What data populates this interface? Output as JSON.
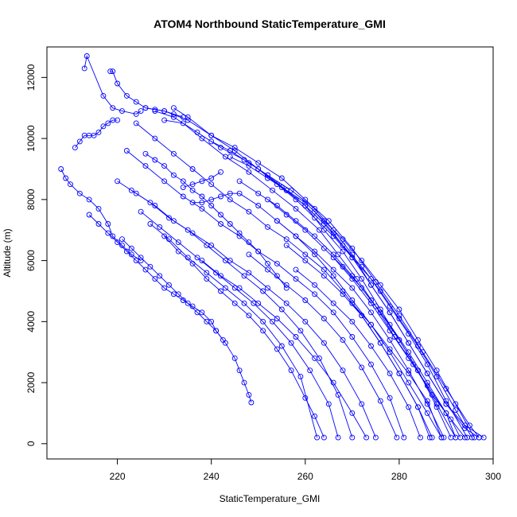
{
  "chart_data": {
    "type": "scatter",
    "title": "ATOM4 Northbound StaticTemperature_GMI",
    "xlabel": "StaticTemperature_GMI",
    "ylabel": "Altitude (m)",
    "xlim": [
      205,
      300
    ],
    "ylim": [
      -500,
      13000
    ],
    "xticks": [
      220,
      240,
      260,
      280,
      300
    ],
    "yticks": [
      0,
      2000,
      4000,
      6000,
      8000,
      10000,
      12000
    ],
    "y_tick_orientation": "vertical",
    "grid": false,
    "legend": "none",
    "marker": "open-circle",
    "connect_points": true,
    "color": "#0000ff",
    "series": [
      {
        "x": [
          213,
          213.5,
          217,
          219,
          221,
          224,
          225
        ],
        "y": [
          12300,
          12700,
          11400,
          11000,
          10900,
          10800,
          10900
        ]
      },
      {
        "x": [
          218.5,
          219,
          220,
          222,
          224,
          226,
          228,
          230,
          232,
          234
        ],
        "y": [
          12200,
          12200,
          11800,
          11400,
          11200,
          11000,
          10950,
          10900,
          10800,
          10700
        ]
      },
      {
        "x": [
          208,
          209,
          210,
          212,
          214,
          216,
          218,
          219,
          221,
          223,
          225
        ],
        "y": [
          9000,
          8700,
          8500,
          8200,
          8000,
          7700,
          7200,
          6800,
          6500,
          6200,
          6000
        ]
      },
      {
        "x": [
          214,
          216,
          218,
          220,
          222,
          224,
          226,
          228,
          230,
          232,
          234,
          236,
          238,
          240,
          241,
          242.5
        ],
        "y": [
          7500,
          7200,
          6900,
          6600,
          6300,
          6000,
          5700,
          5400,
          5100,
          4900,
          4700,
          4500,
          4300,
          4000,
          3700,
          3400
        ]
      },
      {
        "x": [
          221,
          223,
          225,
          227,
          229,
          231,
          233,
          235,
          237,
          239,
          241,
          243,
          245,
          246,
          247,
          248,
          248.5
        ],
        "y": [
          6700,
          6400,
          6100,
          5800,
          5500,
          5200,
          4900,
          4600,
          4300,
          4000,
          3700,
          3300,
          2800,
          2400,
          2000,
          1600,
          1350
        ]
      },
      {
        "x": [
          211,
          212,
          213,
          214,
          215,
          216,
          217,
          218,
          219,
          220
        ],
        "y": [
          9700,
          9900,
          10100,
          10100,
          10100,
          10200,
          10400,
          10500,
          10600,
          10600
        ]
      },
      {
        "x": [
          226,
          230,
          235,
          240,
          245,
          250,
          255,
          260,
          265,
          270,
          275,
          280,
          285,
          290,
          295,
          297
        ],
        "y": [
          11000,
          10900,
          10600,
          10100,
          9700,
          9200,
          8700,
          8000,
          7300,
          6400,
          5300,
          4200,
          3000,
          1800,
          600,
          200
        ]
      },
      {
        "x": [
          228,
          232,
          237,
          242,
          247,
          252,
          257,
          262,
          266,
          270,
          274,
          278,
          282,
          286,
          290,
          294,
          298
        ],
        "y": [
          10900,
          10700,
          10200,
          9700,
          9300,
          8800,
          8300,
          7700,
          7000,
          6200,
          5200,
          4300,
          3300,
          2300,
          1300,
          600,
          200
        ]
      },
      {
        "x": [
          230,
          234,
          238,
          243,
          248,
          253,
          258,
          263,
          267,
          271,
          275,
          279,
          283,
          287,
          291,
          293
        ],
        "y": [
          10600,
          10500,
          10000,
          9400,
          8900,
          8300,
          7700,
          7000,
          6200,
          5400,
          4500,
          3500,
          2600,
          1600,
          800,
          200
        ]
      },
      {
        "x": [
          232,
          235,
          240,
          245,
          250,
          255,
          260,
          264,
          268,
          272,
          276,
          280,
          284,
          288,
          291
        ],
        "y": [
          11000,
          10700,
          10100,
          9600,
          9000,
          8400,
          7800,
          7000,
          6300,
          5400,
          4400,
          3400,
          2400,
          1200,
          200
        ]
      },
      {
        "x": [
          224,
          228,
          232,
          236,
          240,
          244,
          248,
          252,
          256,
          260,
          264,
          268,
          272,
          276,
          280,
          284,
          287
        ],
        "y": [
          10500,
          10000,
          9500,
          9000,
          8500,
          8000,
          7600,
          7100,
          6700,
          6200,
          5700,
          5000,
          4200,
          3300,
          2300,
          1200,
          200
        ]
      },
      {
        "x": [
          222,
          226,
          230,
          234,
          238,
          242,
          246,
          250,
          254,
          258,
          262,
          266,
          270,
          274,
          278,
          281
        ],
        "y": [
          9600,
          9100,
          8600,
          8100,
          7700,
          7200,
          6800,
          6300,
          5900,
          5400,
          4900,
          4300,
          3500,
          2600,
          1500,
          200
        ]
      },
      {
        "x": [
          220,
          224,
          228,
          232,
          236,
          240,
          244,
          248,
          252,
          256,
          260,
          264,
          268,
          272,
          275
        ],
        "y": [
          8600,
          8200,
          7800,
          7300,
          6900,
          6500,
          6000,
          5600,
          5100,
          4600,
          4000,
          3300,
          2400,
          1300,
          200
        ]
      },
      {
        "x": [
          223,
          227,
          231,
          235,
          239,
          243,
          247,
          251,
          255,
          259,
          263,
          267,
          270
        ],
        "y": [
          8300,
          7900,
          7400,
          7000,
          6500,
          6000,
          5500,
          5000,
          4400,
          3700,
          2800,
          1600,
          200
        ]
      },
      {
        "x": [
          225,
          229,
          233,
          237,
          241,
          245,
          249,
          253,
          257,
          261,
          265,
          267
        ],
        "y": [
          7600,
          7100,
          6600,
          6100,
          5600,
          5100,
          4600,
          4000,
          3300,
          2400,
          1300,
          200
        ]
      },
      {
        "x": [
          227,
          231,
          235,
          239,
          243,
          247,
          251,
          255,
          259,
          262.5
        ],
        "y": [
          7200,
          6700,
          6100,
          5600,
          5100,
          4600,
          4000,
          3200,
          2200,
          200
        ]
      },
      {
        "x": [
          230,
          233,
          236,
          239,
          242,
          245,
          248,
          251,
          254,
          257,
          260,
          262,
          264
        ],
        "y": [
          6800,
          6300,
          5900,
          5400,
          5000,
          4600,
          4200,
          3700,
          3100,
          2400,
          1500,
          900,
          200
        ]
      },
      {
        "x": [
          234,
          236,
          238,
          240,
          242
        ],
        "y": [
          8400,
          8500,
          8600,
          8700,
          8900
        ]
      },
      {
        "x": [
          236,
          238,
          240,
          242,
          244,
          246,
          250,
          254,
          258,
          262,
          266,
          270,
          274,
          278,
          282,
          286,
          289
        ],
        "y": [
          7900,
          7900,
          8000,
          8100,
          8200,
          8200,
          7800,
          7300,
          6800,
          6200,
          5500,
          4700,
          3900,
          3000,
          2000,
          1000,
          200
        ]
      },
      {
        "x": [
          240,
          244,
          248,
          252,
          256,
          260,
          264,
          268,
          272,
          276,
          280,
          284,
          288,
          292,
          295.5
        ],
        "y": [
          9900,
          9600,
          9200,
          8800,
          8300,
          7800,
          7200,
          6500,
          5800,
          5000,
          4100,
          3200,
          2200,
          1100,
          200
        ]
      },
      {
        "x": [
          244,
          248,
          252,
          256,
          260,
          264,
          268,
          272,
          276,
          280,
          284,
          288,
          292,
          296
        ],
        "y": [
          9400,
          9100,
          8700,
          8300,
          7900,
          7300,
          6700,
          6000,
          5200,
          4400,
          3400,
          2400,
          1300,
          200
        ]
      },
      {
        "x": [
          246,
          250,
          254,
          258,
          262,
          266,
          270,
          274,
          278,
          282,
          286,
          290,
          294
        ],
        "y": [
          8600,
          8200,
          7800,
          7300,
          6800,
          6200,
          5500,
          4700,
          3900,
          3000,
          2000,
          1000,
          200
        ]
      },
      {
        "x": [
          250,
          254,
          258,
          262,
          266,
          270,
          274,
          278,
          282,
          286,
          290,
          294.5
        ],
        "y": [
          9000,
          8500,
          8000,
          7400,
          6800,
          6100,
          5400,
          4500,
          3600,
          2600,
          1400,
          200
        ]
      },
      {
        "x": [
          252,
          256,
          260,
          264,
          268,
          272,
          276,
          280,
          284,
          288,
          292
        ],
        "y": [
          8000,
          7500,
          7000,
          6400,
          5800,
          5100,
          4300,
          3400,
          2400,
          1300,
          200
        ]
      },
      {
        "x": [
          254,
          258,
          262,
          266,
          270,
          274,
          278,
          282,
          286,
          289.5
        ],
        "y": [
          7300,
          6800,
          6300,
          5700,
          5100,
          4300,
          3400,
          2400,
          1300,
          200
        ]
      },
      {
        "x": [
          256,
          260,
          264,
          268,
          272,
          276,
          280,
          284,
          286.5
        ],
        "y": [
          6500,
          6000,
          5500,
          4900,
          4200,
          3300,
          2300,
          1200,
          200
        ]
      },
      {
        "x": [
          258,
          262,
          266,
          270,
          274,
          278,
          282,
          284.5
        ],
        "y": [
          5700,
          5200,
          4600,
          4000,
          3200,
          2300,
          1200,
          200
        ]
      },
      {
        "x": [
          248,
          252,
          256,
          260,
          264,
          268,
          272,
          276,
          279.5
        ],
        "y": [
          6200,
          5700,
          5200,
          4700,
          4100,
          3400,
          2500,
          1400,
          200
        ]
      },
      {
        "x": [
          238,
          242,
          246,
          250,
          254,
          258,
          262,
          266,
          270,
          273
        ],
        "y": [
          6000,
          5500,
          5100,
          4600,
          4100,
          3500,
          2800,
          2000,
          1000,
          200
        ]
      },
      {
        "x": [
          226,
          228,
          230,
          232,
          234,
          236,
          238,
          240,
          242,
          244,
          246,
          248,
          250,
          252,
          254,
          256
        ],
        "y": [
          9500,
          9300,
          9100,
          8800,
          8600,
          8300,
          8100,
          7800,
          7500,
          7200,
          6900,
          6600,
          6300,
          5900,
          5500,
          5100
        ]
      },
      {
        "x": [
          262,
          266,
          270,
          274,
          278,
          282,
          286,
          290,
          294,
          297
        ],
        "y": [
          7600,
          6900,
          6100,
          5200,
          4300,
          3300,
          2300,
          1300,
          500,
          200
        ]
      },
      {
        "x": [
          266,
          270,
          274,
          278,
          282,
          286,
          290,
          292
        ],
        "y": [
          6100,
          5400,
          4600,
          3700,
          2800,
          1900,
          1000,
          200
        ]
      },
      {
        "x": [
          270,
          274,
          278,
          282,
          286,
          289
        ],
        "y": [
          4600,
          3900,
          3100,
          2300,
          1400,
          200
        ]
      }
    ]
  }
}
